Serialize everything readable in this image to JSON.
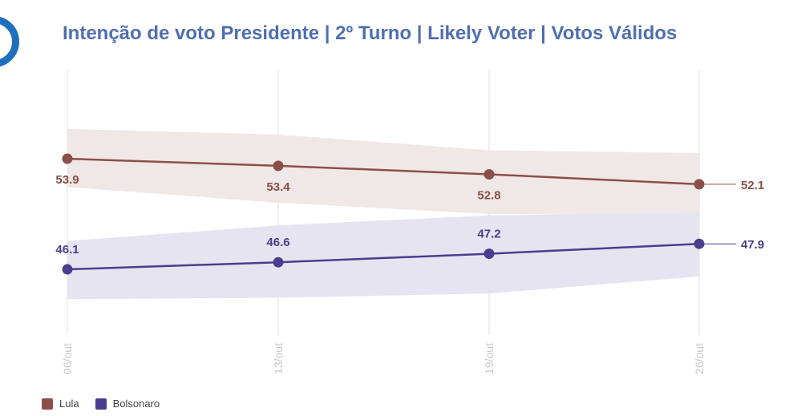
{
  "title": "Intenção de voto Presidente | 2º Turno | Likely Voter | Votos Válidos",
  "chart_data": {
    "type": "line",
    "title": "Intenção de voto Presidente | 2º Turno | Likely Voter | Votos Válidos",
    "categories": [
      "06/out",
      "13/out",
      "19/out",
      "26/out"
    ],
    "series": [
      {
        "name": "Lula",
        "color": "#8b4f4a",
        "band_color": "#f0e8e6",
        "values": [
          53.9,
          53.4,
          52.8,
          52.1
        ],
        "band_upper": [
          56.0,
          55.6,
          54.5,
          54.3
        ],
        "band_lower": [
          51.9,
          50.8,
          50.0,
          49.9
        ],
        "labels": [
          "53.9",
          "53.4",
          "52.8",
          "52.1"
        ]
      },
      {
        "name": "Bolsonaro",
        "color": "#4a3d8f",
        "band_color": "#e6e4f0",
        "values": [
          46.1,
          46.6,
          47.2,
          47.9
        ],
        "band_upper": [
          48.1,
          49.2,
          49.9,
          50.1
        ],
        "band_lower": [
          44.0,
          44.1,
          44.4,
          45.6
        ],
        "labels": [
          "46.1",
          "46.6",
          "47.2",
          "47.9"
        ]
      }
    ],
    "ylim": [
      43.0,
      58.0
    ],
    "grid": "vertical",
    "legend": "bottom-left"
  }
}
